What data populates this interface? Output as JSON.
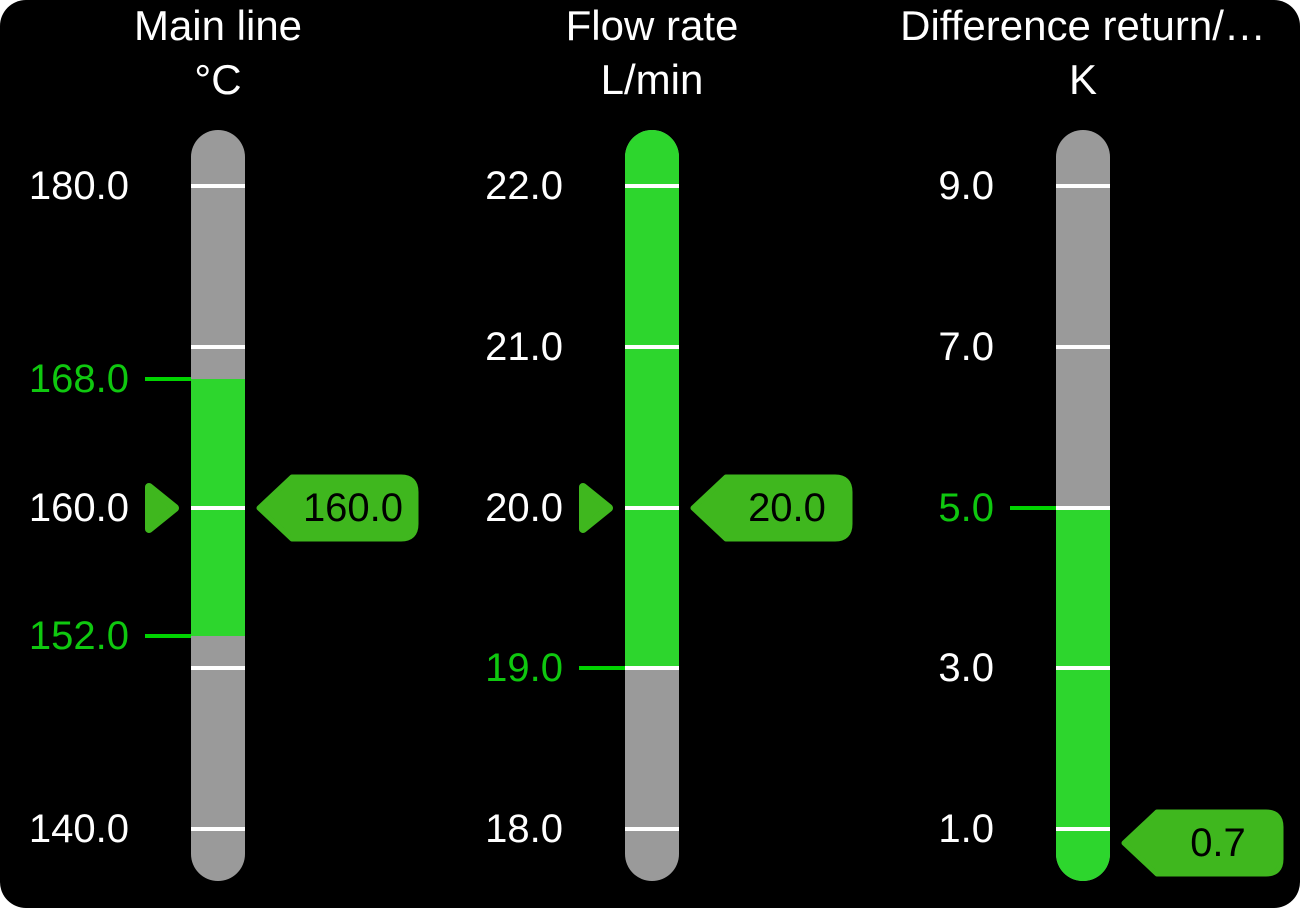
{
  "panel": {
    "background": "#000000",
    "page_background": "#ffffff"
  },
  "colors": {
    "bar_green": "#2DD62D",
    "zone_gray": "#9A9A9A",
    "tick_white": "#FFFFFF",
    "label_white": "#FFFFFF",
    "limit_green_text": "#0FC80F",
    "limit_green_line": "#00D400",
    "indicator_green": "#3FB71E",
    "badge_text": "#000000"
  },
  "chart_data": [
    {
      "type": "bar",
      "title": "Main line",
      "unit": "°C",
      "ylim": [
        140,
        180
      ],
      "ticks": [
        {
          "v": 180,
          "label": "180.0"
        },
        {
          "v": 170,
          "label": null
        },
        {
          "v": 160,
          "label": "160.0"
        },
        {
          "v": 150,
          "label": null
        },
        {
          "v": 140,
          "label": "140.0"
        }
      ],
      "limits": [
        {
          "v": 168,
          "label": "168.0"
        },
        {
          "v": 152,
          "label": "152.0"
        }
      ],
      "green_zone": {
        "low": 152,
        "high": 168
      },
      "value": 160.0,
      "badge": "160.0",
      "pointer": true
    },
    {
      "type": "bar",
      "title": "Flow rate",
      "unit": "L/min",
      "ylim": [
        18,
        22
      ],
      "ticks": [
        {
          "v": 22,
          "label": "22.0"
        },
        {
          "v": 21,
          "label": "21.0"
        },
        {
          "v": 20,
          "label": "20.0"
        },
        {
          "v": 19,
          "label": null
        },
        {
          "v": 18,
          "label": "18.0"
        }
      ],
      "limits": [
        {
          "v": 19,
          "label": "19.0"
        }
      ],
      "green_zone": {
        "low": 19,
        "high": null
      },
      "value": 20.0,
      "badge": "20.0",
      "pointer": true
    },
    {
      "type": "bar",
      "title": "Difference return/…",
      "unit": "K",
      "ylim": [
        1,
        9
      ],
      "ticks": [
        {
          "v": 9,
          "label": "9.0"
        },
        {
          "v": 7,
          "label": "7.0"
        },
        {
          "v": 5,
          "label": null
        },
        {
          "v": 3,
          "label": "3.0"
        },
        {
          "v": 1,
          "label": "1.0"
        }
      ],
      "limits": [
        {
          "v": 5,
          "label": "5.0"
        }
      ],
      "green_zone": {
        "low": null,
        "high": 5
      },
      "value": 0.7,
      "badge": "0.7",
      "pointer": false
    }
  ]
}
